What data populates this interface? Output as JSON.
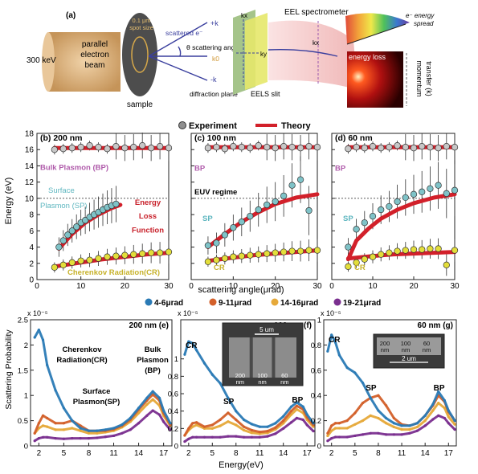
{
  "schematic": {
    "panel_label": "(a)",
    "beam_energy": "300 keV",
    "beam_lines": [
      "parallel",
      "electron",
      "beam"
    ],
    "spot_size_lines": [
      "0.1 μm",
      "spot size"
    ],
    "sample_label": "sample",
    "scattered_label": "scattered e⁻",
    "theta_label": "θ scattering angle",
    "plus_k": "+k",
    "minus_k": "-k",
    "k0_label": "k0",
    "kx_label": "kx",
    "ky_label": "ky",
    "diffraction_plane": "diffraction plane",
    "eels_slit": "EELS slit",
    "spectrometer": "EEL spectrometer",
    "energy_spread_lines": [
      "e⁻ energy",
      "spread"
    ],
    "energy_loss": "energy loss",
    "momentum_lines": [
      "momentum",
      "transfer (k)"
    ],
    "kx_right": "kx",
    "colors": {
      "beam": "#d2a56c",
      "sample": "#555555",
      "slit": "#e3e86a",
      "cone": "#f3c9c9",
      "arrow": "#3a3f9e"
    }
  },
  "legend_top": {
    "experiment": "Experiment",
    "theory": "Theory"
  },
  "legend_bottom": [
    "4-6μrad",
    "9-11μrad",
    "14-16μrad",
    "19-21μrad"
  ],
  "colors": {
    "theory": "#d2202a",
    "exp_bp": "#c7c7c7",
    "exp_sp": "#7fc3c8",
    "exp_cr": "#e3de3a",
    "series": [
      "#2a7ab5",
      "#d3602a",
      "#e6a93a",
      "#7a2f8f"
    ],
    "label_bp": "#b05cab",
    "label_sp": "#5fb7c0",
    "label_cr": "#c7b22a",
    "label_elf": "#c8202a"
  },
  "dispersion_panels": [
    {
      "label": "(b) 200 nm",
      "annotations": {
        "bp": "Bulk Plasmon (BP)",
        "sp": [
          "Surface",
          "Plasmon (SP)"
        ],
        "cr": "Cherenkov Radiation(CR)",
        "elf": [
          "Energy",
          "Loss",
          "Function"
        ]
      }
    },
    {
      "label": "(c) 100 nm",
      "annotations": {
        "bp": "BP",
        "euv": "EUV regime",
        "sp": "SP",
        "cr": "CR"
      }
    },
    {
      "label": "(d) 60 nm",
      "annotations": {
        "bp": "BP",
        "sp": "SP",
        "cr": "CR"
      }
    }
  ],
  "dispersion_axes": {
    "ylabel": "Energy (eV)",
    "xlabel": "scattering angle(μrad)",
    "yticks": [
      "0",
      "2",
      "4",
      "6",
      "8",
      "10",
      "12",
      "14",
      "16",
      "18"
    ],
    "xticks": [
      "0",
      "10",
      "20",
      "30"
    ]
  },
  "spectra_axes": {
    "ylabel": "Scattering Probability",
    "xlabel": "Energy(eV)",
    "yscale": "x 10⁻⁵",
    "yticks_e": [
      "0",
      "0.5",
      "1",
      "1.5",
      "2",
      "2.5"
    ],
    "yticks_fg": [
      "0",
      "0.2",
      "0.4",
      "0.6",
      "0.8",
      "1"
    ],
    "xticks": [
      "2",
      "5",
      "8",
      "11",
      "14",
      "17"
    ]
  },
  "spectra_panels": [
    {
      "label": "200 nm (e)",
      "annotations": {
        "cr": [
          "Cherenkov",
          "Radiation(CR)"
        ],
        "sp": [
          "Surface",
          "Plasmon(SP)"
        ],
        "bp": [
          "Bulk",
          "Plasmon",
          "(BP)"
        ]
      }
    },
    {
      "label": "100 nm (f)",
      "annotations": {
        "cr": "CR",
        "sp": "SP",
        "bp": "BP"
      },
      "inset": {
        "scale": "5 um",
        "widths": [
          "200",
          "100",
          "60"
        ],
        "unit": "nm"
      }
    },
    {
      "label": "60 nm (g)",
      "annotations": {
        "cr": "CR",
        "sp": "SP",
        "bp": "BP"
      },
      "inset": {
        "widths": [
          "200",
          "100",
          "60"
        ],
        "unit": "nm",
        "scale": "2 um"
      }
    }
  ],
  "chart_data": [
    {
      "type": "scatter",
      "title": "(b) 200 nm",
      "xlabel": "scattering angle(μrad)",
      "ylabel": "Energy (eV)",
      "xlim": [
        0,
        30
      ],
      "ylim": [
        0,
        18
      ],
      "series": [
        {
          "name": "Experiment",
          "band": "BP",
          "x": [
            4,
            6,
            8,
            10,
            12,
            14,
            16,
            18,
            20,
            22,
            24,
            26,
            28,
            30
          ],
          "y": [
            16,
            16.1,
            16.2,
            16.3,
            16.5,
            16.3,
            16.1,
            16.4,
            16.2,
            16.3,
            16.5,
            16.2,
            16.4,
            16.2
          ]
        },
        {
          "name": "Experiment",
          "band": "SP",
          "x": [
            5,
            6,
            7,
            8,
            9,
            10,
            11,
            12,
            13,
            14,
            15,
            16,
            17,
            18
          ],
          "y": [
            4,
            4.8,
            5.5,
            6,
            6.5,
            7,
            7.3,
            7.7,
            8,
            8.3,
            8.6,
            8.9,
            9.1,
            9.3
          ]
        },
        {
          "name": "Experiment",
          "band": "CR",
          "x": [
            4,
            6,
            8,
            10,
            12,
            14,
            16,
            18,
            20,
            22,
            24,
            26,
            28,
            30
          ],
          "y": [
            1.5,
            1.8,
            2.1,
            2.3,
            2.4,
            2.6,
            2.8,
            2.9,
            3,
            3.1,
            3.2,
            3.3,
            3.3,
            3.4
          ]
        },
        {
          "name": "Theory",
          "band": "BP",
          "x": [
            4,
            30
          ],
          "y": [
            16.2,
            16.2
          ]
        },
        {
          "name": "Theory",
          "band": "SP",
          "x": [
            5,
            8,
            11,
            14,
            17,
            19
          ],
          "y": [
            3.8,
            5.6,
            7,
            8,
            8.8,
            9.2
          ]
        },
        {
          "name": "Theory",
          "band": "CR",
          "x": [
            4,
            10,
            15,
            20,
            25,
            30
          ],
          "y": [
            1.6,
            2.1,
            2.5,
            2.8,
            3.1,
            3.3
          ]
        }
      ]
    },
    {
      "type": "scatter",
      "title": "(c) 100 nm",
      "xlabel": "scattering angle(μrad)",
      "xlim": [
        0,
        30
      ],
      "ylim": [
        0,
        18
      ],
      "series": [
        {
          "name": "Experiment",
          "band": "BP",
          "x": [
            4,
            6,
            8,
            10,
            12,
            14,
            16,
            18,
            20,
            22,
            24,
            26,
            28,
            30
          ],
          "y": [
            16.2,
            16.3,
            16.1,
            16.4,
            16.3,
            16.2,
            16.5,
            16.3,
            16.2,
            16.4,
            16.3,
            16.2,
            16.4,
            16.3
          ]
        },
        {
          "name": "Experiment",
          "band": "SP",
          "x": [
            4,
            6,
            8,
            10,
            12,
            14,
            16,
            18,
            20,
            22,
            24,
            26,
            28
          ],
          "y": [
            4.2,
            4.5,
            5.5,
            6.4,
            7.1,
            7.8,
            8.6,
            9.2,
            9.6,
            10.3,
            11.6,
            12.3,
            8.5
          ]
        },
        {
          "name": "Experiment",
          "band": "CR",
          "x": [
            4,
            6,
            8,
            10,
            12,
            14,
            16,
            18,
            20,
            22,
            24,
            26,
            28,
            30
          ],
          "y": [
            2.2,
            2.4,
            2.6,
            2.8,
            2.9,
            3,
            3.1,
            3.2,
            3.3,
            3.4,
            3.5,
            3.5,
            3.6,
            3.6
          ]
        },
        {
          "name": "Theory",
          "band": "BP",
          "x": [
            4,
            30
          ],
          "y": [
            16.3,
            16.3
          ]
        },
        {
          "name": "Theory",
          "band": "SP",
          "x": [
            4,
            8,
            12,
            16,
            20,
            25,
            30
          ],
          "y": [
            4,
            5.6,
            7.1,
            8.3,
            9.3,
            10.1,
            10.5
          ]
        },
        {
          "name": "Theory",
          "band": "CR",
          "x": [
            4,
            10,
            15,
            20,
            25,
            30
          ],
          "y": [
            2.3,
            2.7,
            3,
            3.2,
            3.4,
            3.6
          ]
        }
      ]
    },
    {
      "type": "scatter",
      "title": "(d) 60 nm",
      "xlabel": "scattering angle(μrad)",
      "xlim": [
        0,
        30
      ],
      "ylim": [
        0,
        18
      ],
      "series": [
        {
          "name": "Experiment",
          "band": "BP",
          "x": [
            4,
            6,
            8,
            10,
            12,
            14,
            16,
            18,
            20,
            22,
            24,
            26,
            28,
            30
          ],
          "y": [
            16.1,
            16.3,
            16.2,
            16.4,
            16.2,
            16.3,
            16.5,
            16.3,
            16.2,
            16.4,
            16.3,
            16.2,
            16.4,
            16.3
          ]
        },
        {
          "name": "Experiment",
          "band": "SP",
          "x": [
            4,
            6,
            8,
            10,
            12,
            14,
            16,
            18,
            20,
            22,
            24,
            26,
            28,
            30
          ],
          "y": [
            4,
            6.2,
            7,
            7.8,
            8.6,
            9,
            9.6,
            10.1,
            10.5,
            10.8,
            11.2,
            11.6,
            10.6,
            11
          ]
        },
        {
          "name": "Experiment",
          "band": "CR",
          "x": [
            4,
            6,
            8,
            10,
            12,
            14,
            16,
            18,
            20,
            22,
            24,
            26,
            28,
            30
          ],
          "y": [
            1.6,
            2.1,
            2.5,
            2.8,
            3.1,
            3.3,
            3.5,
            3.6,
            3.7,
            3.7,
            3.8,
            3.8,
            1.8,
            3.6
          ]
        },
        {
          "name": "Theory",
          "band": "BP",
          "x": [
            4,
            30
          ],
          "y": [
            16.3,
            16.3
          ]
        },
        {
          "name": "Theory",
          "band": "SP",
          "x": [
            4,
            6,
            9,
            12,
            16,
            20,
            25,
            30
          ],
          "y": [
            2.5,
            4.8,
            6.3,
            7.5,
            8.6,
            9.4,
            10.1,
            10.5
          ]
        },
        {
          "name": "Theory",
          "band": "CR",
          "x": [
            4,
            10,
            15,
            20,
            25,
            30
          ],
          "y": [
            2.6,
            2.9,
            3.1,
            3.2,
            3.3,
            3.4
          ]
        }
      ]
    },
    {
      "type": "line",
      "title": "200 nm (e)",
      "xlabel": "Energy(eV)",
      "ylabel": "Scattering Probability (x 10⁻⁵)",
      "xlim": [
        1,
        18
      ],
      "ylim": [
        0,
        2.5
      ],
      "x": [
        1.5,
        2,
        2.5,
        3,
        4,
        5,
        6,
        7,
        8,
        9,
        10,
        11,
        12,
        13,
        14,
        15,
        15.7,
        16.5,
        17,
        17.8
      ],
      "series": [
        {
          "name": "4-6μrad",
          "values": [
            2.15,
            2.3,
            2.1,
            1.6,
            1.1,
            0.75,
            0.5,
            0.35,
            0.3,
            0.3,
            0.32,
            0.35,
            0.42,
            0.55,
            0.75,
            0.95,
            1.08,
            0.95,
            0.7,
            0.45
          ]
        },
        {
          "name": "9-11μrad",
          "values": [
            0.25,
            0.45,
            0.6,
            0.55,
            0.45,
            0.45,
            0.5,
            0.4,
            0.3,
            0.3,
            0.3,
            0.33,
            0.4,
            0.52,
            0.72,
            0.9,
            1.02,
            0.9,
            0.65,
            0.42
          ]
        },
        {
          "name": "14-16μrad",
          "values": [
            0.25,
            0.35,
            0.4,
            0.38,
            0.32,
            0.32,
            0.35,
            0.3,
            0.25,
            0.25,
            0.27,
            0.3,
            0.37,
            0.48,
            0.65,
            0.82,
            0.92,
            0.8,
            0.6,
            0.4
          ]
        },
        {
          "name": "19-21μrad",
          "values": [
            0.1,
            0.15,
            0.17,
            0.17,
            0.15,
            0.14,
            0.15,
            0.15,
            0.15,
            0.16,
            0.18,
            0.2,
            0.25,
            0.32,
            0.45,
            0.6,
            0.7,
            0.62,
            0.48,
            0.32
          ]
        }
      ]
    },
    {
      "type": "line",
      "title": "100 nm (f)",
      "xlabel": "Energy(eV)",
      "xlim": [
        1,
        18
      ],
      "ylim": [
        0,
        1.45
      ],
      "x": [
        1.5,
        2,
        2.5,
        3,
        4,
        5,
        6,
        7,
        8,
        9,
        10,
        11,
        12,
        13,
        14,
        15,
        15.7,
        16.5,
        17,
        17.8
      ],
      "series": [
        {
          "name": "4-6μrad",
          "values": [
            1.05,
            1.2,
            1.18,
            1.1,
            0.95,
            0.82,
            0.72,
            0.55,
            0.4,
            0.3,
            0.25,
            0.22,
            0.22,
            0.26,
            0.34,
            0.45,
            0.5,
            0.45,
            0.36,
            0.26
          ]
        },
        {
          "name": "9-11μrad",
          "values": [
            0.12,
            0.2,
            0.26,
            0.27,
            0.22,
            0.24,
            0.3,
            0.38,
            0.3,
            0.22,
            0.18,
            0.16,
            0.17,
            0.21,
            0.29,
            0.4,
            0.46,
            0.42,
            0.33,
            0.24
          ]
        },
        {
          "name": "14-16μrad",
          "values": [
            0.12,
            0.18,
            0.22,
            0.24,
            0.2,
            0.2,
            0.23,
            0.28,
            0.24,
            0.18,
            0.15,
            0.14,
            0.15,
            0.19,
            0.26,
            0.36,
            0.42,
            0.38,
            0.3,
            0.22
          ]
        },
        {
          "name": "19-21μrad",
          "values": [
            0.05,
            0.08,
            0.1,
            0.1,
            0.1,
            0.1,
            0.1,
            0.11,
            0.11,
            0.1,
            0.1,
            0.1,
            0.11,
            0.14,
            0.2,
            0.27,
            0.32,
            0.3,
            0.24,
            0.17
          ]
        }
      ]
    },
    {
      "type": "line",
      "title": "60 nm (g)",
      "xlabel": "Energy(eV)",
      "xlim": [
        1,
        18
      ],
      "ylim": [
        0,
        1.0
      ],
      "x": [
        1.5,
        2,
        2.5,
        3,
        4,
        5,
        6,
        7,
        8,
        9,
        10,
        11,
        12,
        13,
        14,
        15,
        15.7,
        16.5,
        17,
        17.8
      ],
      "series": [
        {
          "name": "4-6μrad",
          "values": [
            0.75,
            0.88,
            0.82,
            0.72,
            0.62,
            0.58,
            0.5,
            0.38,
            0.28,
            0.22,
            0.18,
            0.16,
            0.16,
            0.18,
            0.24,
            0.33,
            0.43,
            0.36,
            0.28,
            0.2
          ]
        },
        {
          "name": "9-11μrad",
          "values": [
            0.1,
            0.16,
            0.18,
            0.18,
            0.2,
            0.26,
            0.34,
            0.38,
            0.4,
            0.32,
            0.22,
            0.17,
            0.16,
            0.18,
            0.24,
            0.32,
            0.4,
            0.35,
            0.27,
            0.2
          ]
        },
        {
          "name": "14-16μrad",
          "values": [
            0.08,
            0.12,
            0.14,
            0.14,
            0.14,
            0.17,
            0.2,
            0.24,
            0.22,
            0.18,
            0.15,
            0.13,
            0.13,
            0.15,
            0.2,
            0.28,
            0.34,
            0.3,
            0.23,
            0.17
          ]
        },
        {
          "name": "19-21μrad",
          "values": [
            0.04,
            0.06,
            0.07,
            0.07,
            0.07,
            0.08,
            0.09,
            0.1,
            0.1,
            0.09,
            0.09,
            0.09,
            0.1,
            0.12,
            0.16,
            0.21,
            0.24,
            0.22,
            0.18,
            0.13
          ]
        }
      ]
    }
  ]
}
